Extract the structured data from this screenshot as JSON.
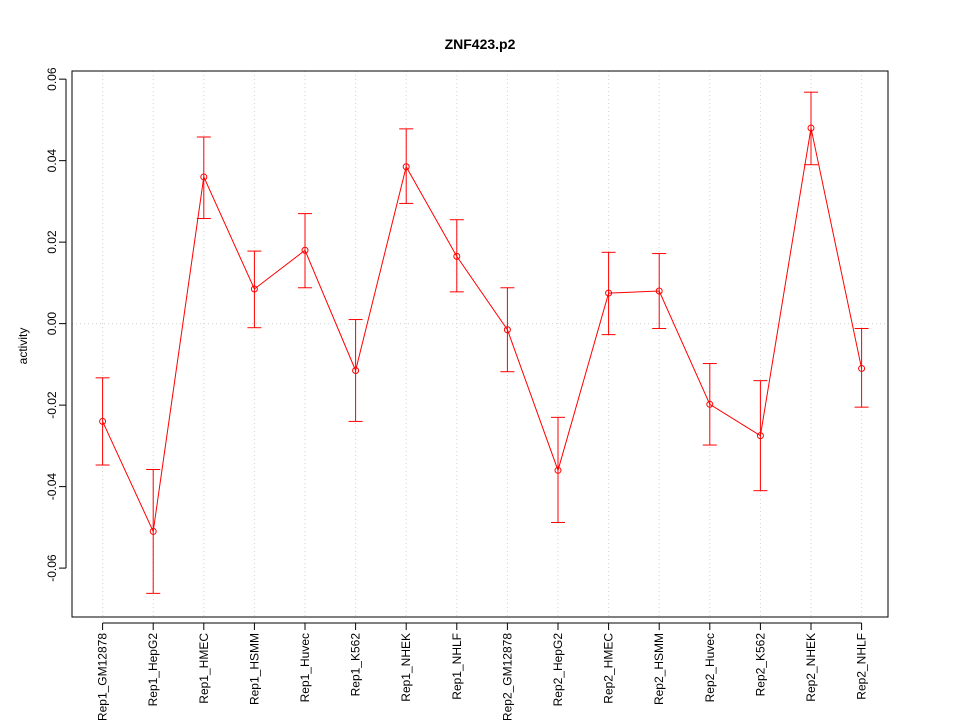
{
  "chart_data": {
    "type": "line",
    "title": "ZNF423.p2",
    "xlabel": "",
    "ylabel": "activity",
    "ylim": [
      -0.072,
      0.062
    ],
    "yticks": [
      -0.06,
      -0.04,
      -0.02,
      0.0,
      0.02,
      0.04,
      0.06
    ],
    "ytick_labels": [
      "-0.06",
      "-0.04",
      "-0.02",
      "0.00",
      "0.02",
      "0.04",
      "0.06"
    ],
    "grid": true,
    "color": "#ff0000",
    "categories": [
      "Rep1_GM12878",
      "Rep1_HepG2",
      "Rep1_HMEC",
      "Rep1_HSMM",
      "Rep1_Huvec",
      "Rep1_K562",
      "Rep1_NHEK",
      "Rep1_NHLF",
      "Rep2_GM12878",
      "Rep2_HepG2",
      "Rep2_HMEC",
      "Rep2_HSMM",
      "Rep2_Huvec",
      "Rep2_K562",
      "Rep2_NHEK",
      "Rep2_NHLF"
    ],
    "values": [
      -0.024,
      -0.051,
      0.036,
      0.0085,
      0.018,
      -0.0115,
      0.0385,
      0.0165,
      -0.0015,
      -0.036,
      0.0075,
      0.008,
      -0.0198,
      -0.0275,
      0.048,
      -0.011
    ],
    "upper": [
      -0.0133,
      -0.0358,
      0.0458,
      0.0178,
      0.027,
      0.001,
      0.0478,
      0.0255,
      0.0088,
      -0.023,
      0.0175,
      0.0172,
      -0.0098,
      -0.014,
      0.0568,
      -0.0012
    ],
    "lower": [
      -0.0347,
      -0.0662,
      0.0258,
      -0.001,
      0.0088,
      -0.024,
      0.0295,
      0.0078,
      -0.0118,
      -0.0488,
      -0.0027,
      -0.0012,
      -0.0298,
      -0.041,
      0.039,
      -0.0205
    ]
  }
}
